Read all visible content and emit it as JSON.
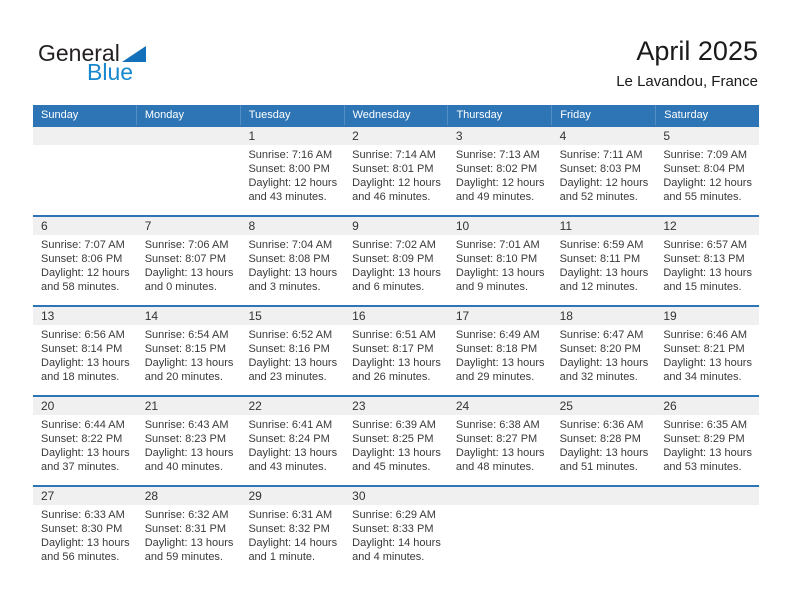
{
  "logo": {
    "text_black": "General",
    "text_blue": "Blue"
  },
  "header": {
    "title": "April 2025",
    "subtitle": "Le Lavandou, France"
  },
  "colors": {
    "header_blue": "#2E75B6",
    "row_border_blue": "#2E75B6",
    "strip_gray": "#F0F0F0",
    "header_text": "#FFFFFF",
    "body_text": "#3A3A3A",
    "title_text": "#1A1A1A",
    "logo_blue_text": "#1788CE",
    "logo_triangle": "#1470B8"
  },
  "calendar": {
    "day_headers": [
      "Sunday",
      "Monday",
      "Tuesday",
      "Wednesday",
      "Thursday",
      "Friday",
      "Saturday"
    ],
    "weeks": [
      {
        "days": [
          null,
          null,
          {
            "num": "1",
            "lines": [
              "Sunrise: 7:16 AM",
              "Sunset: 8:00 PM",
              "Daylight: 12 hours",
              "and 43 minutes."
            ]
          },
          {
            "num": "2",
            "lines": [
              "Sunrise: 7:14 AM",
              "Sunset: 8:01 PM",
              "Daylight: 12 hours",
              "and 46 minutes."
            ]
          },
          {
            "num": "3",
            "lines": [
              "Sunrise: 7:13 AM",
              "Sunset: 8:02 PM",
              "Daylight: 12 hours",
              "and 49 minutes."
            ]
          },
          {
            "num": "4",
            "lines": [
              "Sunrise: 7:11 AM",
              "Sunset: 8:03 PM",
              "Daylight: 12 hours",
              "and 52 minutes."
            ]
          },
          {
            "num": "5",
            "lines": [
              "Sunrise: 7:09 AM",
              "Sunset: 8:04 PM",
              "Daylight: 12 hours",
              "and 55 minutes."
            ]
          }
        ]
      },
      {
        "days": [
          {
            "num": "6",
            "lines": [
              "Sunrise: 7:07 AM",
              "Sunset: 8:06 PM",
              "Daylight: 12 hours",
              "and 58 minutes."
            ]
          },
          {
            "num": "7",
            "lines": [
              "Sunrise: 7:06 AM",
              "Sunset: 8:07 PM",
              "Daylight: 13 hours",
              "and 0 minutes."
            ]
          },
          {
            "num": "8",
            "lines": [
              "Sunrise: 7:04 AM",
              "Sunset: 8:08 PM",
              "Daylight: 13 hours",
              "and 3 minutes."
            ]
          },
          {
            "num": "9",
            "lines": [
              "Sunrise: 7:02 AM",
              "Sunset: 8:09 PM",
              "Daylight: 13 hours",
              "and 6 minutes."
            ]
          },
          {
            "num": "10",
            "lines": [
              "Sunrise: 7:01 AM",
              "Sunset: 8:10 PM",
              "Daylight: 13 hours",
              "and 9 minutes."
            ]
          },
          {
            "num": "11",
            "lines": [
              "Sunrise: 6:59 AM",
              "Sunset: 8:11 PM",
              "Daylight: 13 hours",
              "and 12 minutes."
            ]
          },
          {
            "num": "12",
            "lines": [
              "Sunrise: 6:57 AM",
              "Sunset: 8:13 PM",
              "Daylight: 13 hours",
              "and 15 minutes."
            ]
          }
        ]
      },
      {
        "days": [
          {
            "num": "13",
            "lines": [
              "Sunrise: 6:56 AM",
              "Sunset: 8:14 PM",
              "Daylight: 13 hours",
              "and 18 minutes."
            ]
          },
          {
            "num": "14",
            "lines": [
              "Sunrise: 6:54 AM",
              "Sunset: 8:15 PM",
              "Daylight: 13 hours",
              "and 20 minutes."
            ]
          },
          {
            "num": "15",
            "lines": [
              "Sunrise: 6:52 AM",
              "Sunset: 8:16 PM",
              "Daylight: 13 hours",
              "and 23 minutes."
            ]
          },
          {
            "num": "16",
            "lines": [
              "Sunrise: 6:51 AM",
              "Sunset: 8:17 PM",
              "Daylight: 13 hours",
              "and 26 minutes."
            ]
          },
          {
            "num": "17",
            "lines": [
              "Sunrise: 6:49 AM",
              "Sunset: 8:18 PM",
              "Daylight: 13 hours",
              "and 29 minutes."
            ]
          },
          {
            "num": "18",
            "lines": [
              "Sunrise: 6:47 AM",
              "Sunset: 8:20 PM",
              "Daylight: 13 hours",
              "and 32 minutes."
            ]
          },
          {
            "num": "19",
            "lines": [
              "Sunrise: 6:46 AM",
              "Sunset: 8:21 PM",
              "Daylight: 13 hours",
              "and 34 minutes."
            ]
          }
        ]
      },
      {
        "days": [
          {
            "num": "20",
            "lines": [
              "Sunrise: 6:44 AM",
              "Sunset: 8:22 PM",
              "Daylight: 13 hours",
              "and 37 minutes."
            ]
          },
          {
            "num": "21",
            "lines": [
              "Sunrise: 6:43 AM",
              "Sunset: 8:23 PM",
              "Daylight: 13 hours",
              "and 40 minutes."
            ]
          },
          {
            "num": "22",
            "lines": [
              "Sunrise: 6:41 AM",
              "Sunset: 8:24 PM",
              "Daylight: 13 hours",
              "and 43 minutes."
            ]
          },
          {
            "num": "23",
            "lines": [
              "Sunrise: 6:39 AM",
              "Sunset: 8:25 PM",
              "Daylight: 13 hours",
              "and 45 minutes."
            ]
          },
          {
            "num": "24",
            "lines": [
              "Sunrise: 6:38 AM",
              "Sunset: 8:27 PM",
              "Daylight: 13 hours",
              "and 48 minutes."
            ]
          },
          {
            "num": "25",
            "lines": [
              "Sunrise: 6:36 AM",
              "Sunset: 8:28 PM",
              "Daylight: 13 hours",
              "and 51 minutes."
            ]
          },
          {
            "num": "26",
            "lines": [
              "Sunrise: 6:35 AM",
              "Sunset: 8:29 PM",
              "Daylight: 13 hours",
              "and 53 minutes."
            ]
          }
        ]
      },
      {
        "days": [
          {
            "num": "27",
            "lines": [
              "Sunrise: 6:33 AM",
              "Sunset: 8:30 PM",
              "Daylight: 13 hours",
              "and 56 minutes."
            ]
          },
          {
            "num": "28",
            "lines": [
              "Sunrise: 6:32 AM",
              "Sunset: 8:31 PM",
              "Daylight: 13 hours",
              "and 59 minutes."
            ]
          },
          {
            "num": "29",
            "lines": [
              "Sunrise: 6:31 AM",
              "Sunset: 8:32 PM",
              "Daylight: 14 hours",
              "and 1 minute."
            ]
          },
          {
            "num": "30",
            "lines": [
              "Sunrise: 6:29 AM",
              "Sunset: 8:33 PM",
              "Daylight: 14 hours",
              "and 4 minutes."
            ]
          },
          null,
          null,
          null
        ]
      }
    ]
  }
}
